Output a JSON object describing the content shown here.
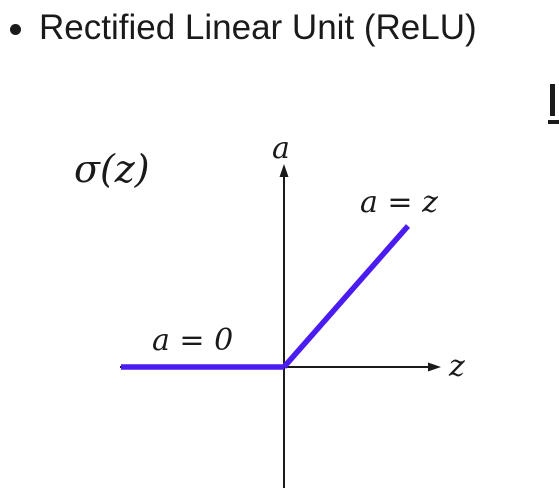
{
  "slide": {
    "bullet_text": "Rectified Linear Unit (ReLU)"
  },
  "plot": {
    "function_label": "σ(z)",
    "y_axis_label": "a",
    "x_axis_label": "z",
    "positive_segment_label": "a = z",
    "negative_segment_label": "a = 0"
  },
  "colors": {
    "curve": "#4b1cf2",
    "axis": "#1a1a1a",
    "text": "#1a1a1a"
  },
  "icons": {
    "bullet": "bullet-dot-icon",
    "y_arrow": "arrow-up-icon",
    "x_arrow": "arrow-right-icon"
  }
}
